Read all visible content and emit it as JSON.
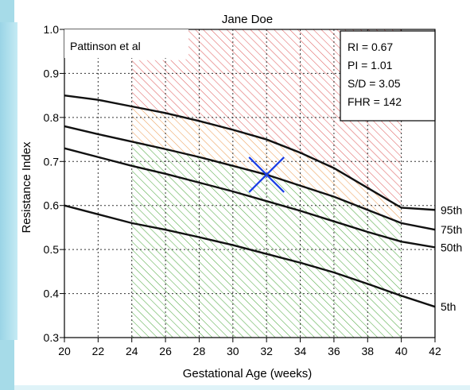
{
  "colors": {
    "curve": "#111111",
    "grid": "#333333",
    "hatch_red": "#e06060",
    "hatch_orange": "#eda05a",
    "hatch_green": "#52aa44",
    "marker": "#1a3ee6",
    "frame": "#a6dbe8"
  },
  "chart_data": {
    "type": "line",
    "title": "Jane Doe",
    "subtitle": "Pattinson et al",
    "xlabel": "Gestational Age (weeks)",
    "ylabel": "Resistance Index",
    "xlim": [
      20,
      42
    ],
    "ylim": [
      0.3,
      1.0
    ],
    "xticks": [
      "20",
      "22",
      "24",
      "26",
      "28",
      "30",
      "32",
      "34",
      "36",
      "38",
      "40",
      "42"
    ],
    "yticks": [
      "0.3",
      "0.4",
      "0.5",
      "0.6",
      "0.7",
      "0.8",
      "0.9",
      "1.0"
    ],
    "grid": true,
    "x": [
      20,
      22,
      24,
      26,
      28,
      30,
      32,
      34,
      36,
      38,
      40,
      42
    ],
    "series": [
      {
        "name": "95th",
        "values": [
          0.85,
          0.84,
          0.825,
          0.81,
          0.792,
          0.772,
          0.75,
          0.72,
          0.685,
          0.64,
          0.595,
          0.59
        ]
      },
      {
        "name": "75th",
        "values": [
          0.78,
          0.762,
          0.745,
          0.728,
          0.71,
          0.69,
          0.67,
          0.645,
          0.62,
          0.59,
          0.56,
          0.545
        ]
      },
      {
        "name": "50th",
        "values": [
          0.73,
          0.71,
          0.69,
          0.672,
          0.652,
          0.632,
          0.61,
          0.588,
          0.564,
          0.54,
          0.518,
          0.505
        ]
      },
      {
        "name": "5th",
        "values": [
          0.6,
          0.58,
          0.56,
          0.545,
          0.528,
          0.51,
          0.49,
          0.47,
          0.448,
          0.422,
          0.395,
          0.37
        ]
      }
    ],
    "shaded_region": {
      "x_range": [
        24,
        40
      ]
    },
    "upper_region_start": 27.2,
    "marker": {
      "x": 32,
      "y": 0.67
    },
    "info_box": [
      "RI = 0.67",
      "PI = 1.01",
      "S/D = 3.05",
      "FHR = 142"
    ]
  }
}
